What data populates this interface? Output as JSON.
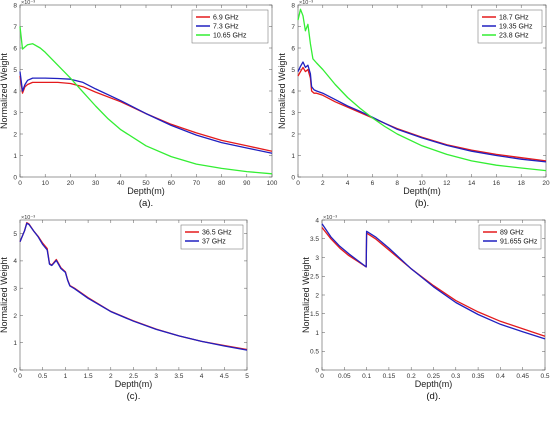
{
  "chart_data": [
    {
      "type": "line",
      "caption": "(a).",
      "xlabel": "Depth(m)",
      "ylabel": "Normalized Weight",
      "y_exponent": "×10⁻³",
      "xlim": [
        0,
        100
      ],
      "ylim": [
        0,
        8
      ],
      "xticks": [
        0,
        10,
        20,
        30,
        40,
        50,
        60,
        70,
        80,
        90,
        100
      ],
      "yticks": [
        0,
        1,
        2,
        3,
        4,
        5,
        6,
        7,
        8
      ],
      "legend_position": "top-right",
      "grid": false,
      "series": [
        {
          "name": "6.9 GHz",
          "color": "#e41a1c",
          "x": [
            0,
            1,
            2,
            3,
            5,
            10,
            15,
            20,
            25,
            30,
            40,
            50,
            60,
            70,
            80,
            90,
            100
          ],
          "y": [
            4.7,
            3.9,
            4.2,
            4.3,
            4.4,
            4.4,
            4.4,
            4.35,
            4.2,
            3.95,
            3.5,
            2.95,
            2.45,
            2.05,
            1.7,
            1.45,
            1.2
          ]
        },
        {
          "name": "7.3 GHz",
          "color": "#2020c0",
          "x": [
            0,
            1,
            2,
            3,
            5,
            10,
            15,
            20,
            25,
            30,
            40,
            50,
            60,
            70,
            80,
            90,
            100
          ],
          "y": [
            4.9,
            4.0,
            4.3,
            4.5,
            4.6,
            4.6,
            4.58,
            4.55,
            4.4,
            4.1,
            3.55,
            2.95,
            2.4,
            1.95,
            1.6,
            1.35,
            1.1
          ]
        },
        {
          "name": "10.65 GHz",
          "color": "#33ee33",
          "x": [
            0,
            1,
            2,
            3,
            5,
            8,
            10,
            15,
            20,
            25,
            30,
            35,
            40,
            50,
            60,
            70,
            80,
            90,
            100
          ],
          "y": [
            7.0,
            5.95,
            6.05,
            6.15,
            6.2,
            6.0,
            5.8,
            5.2,
            4.6,
            3.95,
            3.3,
            2.7,
            2.2,
            1.45,
            0.95,
            0.6,
            0.4,
            0.25,
            0.15
          ]
        }
      ]
    },
    {
      "type": "line",
      "caption": "(b).",
      "xlabel": "Depth(m)",
      "ylabel": "Normalized Weight",
      "y_exponent": "×10⁻³",
      "xlim": [
        0,
        20
      ],
      "ylim": [
        0,
        8
      ],
      "xticks": [
        0,
        2,
        4,
        6,
        8,
        10,
        12,
        14,
        16,
        18,
        20
      ],
      "yticks": [
        0,
        1,
        2,
        3,
        4,
        5,
        6,
        7,
        8
      ],
      "legend_position": "top-right",
      "grid": false,
      "series": [
        {
          "name": "18.7 GHz",
          "color": "#e41a1c",
          "x": [
            0,
            0.2,
            0.4,
            0.6,
            0.8,
            1.0,
            1.1,
            1.3,
            1.5,
            2,
            3,
            4,
            5,
            6,
            7,
            8,
            10,
            12,
            14,
            16,
            18,
            20
          ],
          "y": [
            4.7,
            4.9,
            5.1,
            4.9,
            5.0,
            4.6,
            4.0,
            3.9,
            3.9,
            3.8,
            3.5,
            3.25,
            3.0,
            2.75,
            2.5,
            2.25,
            1.85,
            1.5,
            1.25,
            1.05,
            0.9,
            0.75
          ]
        },
        {
          "name": "19.35 GHz",
          "color": "#2020c0",
          "x": [
            0,
            0.2,
            0.4,
            0.6,
            0.8,
            1.0,
            1.1,
            1.3,
            1.5,
            2,
            3,
            4,
            5,
            6,
            7,
            8,
            10,
            12,
            14,
            16,
            18,
            20
          ],
          "y": [
            4.9,
            5.15,
            5.35,
            5.1,
            5.2,
            4.8,
            4.2,
            4.05,
            4.0,
            3.9,
            3.6,
            3.3,
            3.05,
            2.78,
            2.5,
            2.22,
            1.82,
            1.47,
            1.2,
            1.0,
            0.83,
            0.7
          ]
        },
        {
          "name": "23.8 GHz",
          "color": "#33ee33",
          "x": [
            0,
            0.2,
            0.4,
            0.6,
            0.8,
            1.0,
            1.2,
            1.5,
            2,
            3,
            4,
            5,
            6,
            7,
            8,
            10,
            12,
            14,
            16,
            18,
            20
          ],
          "y": [
            7.3,
            7.8,
            7.5,
            6.8,
            7.1,
            6.2,
            5.5,
            5.3,
            5.0,
            4.3,
            3.7,
            3.2,
            2.75,
            2.35,
            2.0,
            1.45,
            1.05,
            0.75,
            0.55,
            0.42,
            0.3
          ]
        }
      ]
    },
    {
      "type": "line",
      "caption": "(c).",
      "xlabel": "Depth(m)",
      "ylabel": "Normalized Weight",
      "y_exponent": "×10⁻³",
      "xlim": [
        0,
        5
      ],
      "ylim": [
        0,
        5.5
      ],
      "xticks": [
        0,
        0.5,
        1,
        1.5,
        2,
        2.5,
        3,
        3.5,
        4,
        4.5,
        5
      ],
      "yticks": [
        0,
        1,
        2,
        3,
        4,
        5
      ],
      "legend_position": "top-right",
      "grid": false,
      "series": [
        {
          "name": "36.5 GHz",
          "color": "#e41a1c",
          "x": [
            0,
            0.1,
            0.15,
            0.2,
            0.3,
            0.4,
            0.5,
            0.6,
            0.65,
            0.7,
            0.8,
            0.9,
            1.0,
            1.05,
            1.1,
            1.2,
            1.5,
            2.0,
            2.5,
            3.0,
            3.5,
            4.0,
            4.5,
            5.0
          ],
          "y": [
            4.7,
            5.1,
            5.4,
            5.35,
            5.1,
            4.9,
            4.65,
            4.45,
            3.9,
            3.85,
            4.05,
            3.75,
            3.6,
            3.3,
            3.1,
            3.0,
            2.65,
            2.15,
            1.8,
            1.5,
            1.25,
            1.05,
            0.9,
            0.75
          ]
        },
        {
          "name": "37 GHz",
          "color": "#2020c0",
          "x": [
            0,
            0.1,
            0.15,
            0.2,
            0.3,
            0.4,
            0.5,
            0.6,
            0.65,
            0.7,
            0.8,
            0.9,
            1.0,
            1.05,
            1.1,
            1.2,
            1.5,
            2.0,
            2.5,
            3.0,
            3.5,
            4.0,
            4.5,
            5.0
          ],
          "y": [
            4.7,
            5.1,
            5.38,
            5.33,
            5.1,
            4.88,
            4.6,
            4.4,
            3.88,
            3.83,
            4.02,
            3.72,
            3.58,
            3.28,
            3.08,
            2.98,
            2.63,
            2.14,
            1.79,
            1.49,
            1.25,
            1.05,
            0.88,
            0.73
          ]
        }
      ]
    },
    {
      "type": "line",
      "caption": "(d).",
      "xlabel": "Depth(m)",
      "ylabel": "Normalized Weight",
      "y_exponent": "×10⁻³",
      "xlim": [
        0,
        0.5
      ],
      "ylim": [
        0,
        4
      ],
      "xticks": [
        0,
        0.05,
        0.1,
        0.15,
        0.2,
        0.25,
        0.3,
        0.35,
        0.4,
        0.45,
        0.5
      ],
      "yticks": [
        0,
        0.5,
        1,
        1.5,
        2,
        2.5,
        3,
        3.5,
        4
      ],
      "legend_position": "top-right",
      "grid": false,
      "series": [
        {
          "name": "89 GHz",
          "color": "#e41a1c",
          "x": [
            0,
            0.02,
            0.04,
            0.06,
            0.08,
            0.099,
            0.1,
            0.12,
            0.15,
            0.2,
            0.25,
            0.3,
            0.35,
            0.4,
            0.45,
            0.5
          ],
          "y": [
            3.8,
            3.5,
            3.25,
            3.05,
            2.9,
            2.75,
            3.65,
            3.5,
            3.2,
            2.7,
            2.25,
            1.85,
            1.55,
            1.3,
            1.1,
            0.9
          ]
        },
        {
          "name": "91.655 GHz",
          "color": "#2020c0",
          "x": [
            0,
            0.02,
            0.04,
            0.06,
            0.08,
            0.099,
            0.1,
            0.12,
            0.15,
            0.2,
            0.25,
            0.3,
            0.35,
            0.4,
            0.45,
            0.5
          ],
          "y": [
            3.9,
            3.55,
            3.3,
            3.1,
            2.92,
            2.75,
            3.7,
            3.55,
            3.25,
            2.7,
            2.22,
            1.8,
            1.48,
            1.22,
            1.02,
            0.83
          ]
        }
      ]
    }
  ]
}
